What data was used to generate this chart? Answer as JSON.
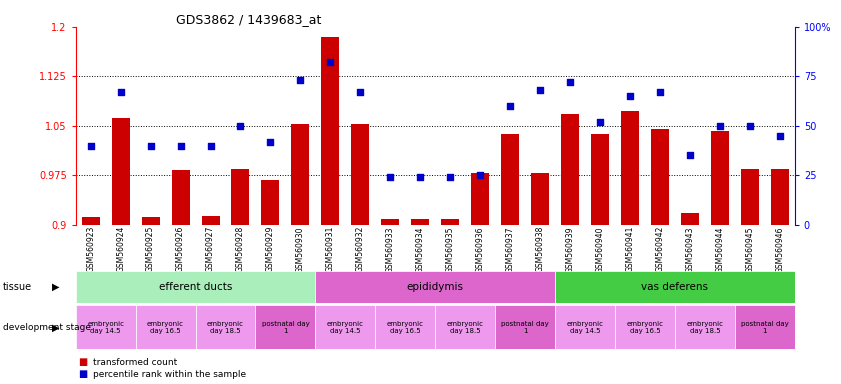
{
  "title": "GDS3862 / 1439683_at",
  "samples": [
    "GSM560923",
    "GSM560924",
    "GSM560925",
    "GSM560926",
    "GSM560927",
    "GSM560928",
    "GSM560929",
    "GSM560930",
    "GSM560931",
    "GSM560932",
    "GSM560933",
    "GSM560934",
    "GSM560935",
    "GSM560936",
    "GSM560937",
    "GSM560938",
    "GSM560939",
    "GSM560940",
    "GSM560941",
    "GSM560942",
    "GSM560943",
    "GSM560944",
    "GSM560945",
    "GSM560946"
  ],
  "transformed_count": [
    0.912,
    1.062,
    0.912,
    0.983,
    0.913,
    0.984,
    0.968,
    1.052,
    1.185,
    1.052,
    0.908,
    0.909,
    0.908,
    0.978,
    1.038,
    0.979,
    1.068,
    1.038,
    1.072,
    1.045,
    0.918,
    1.042,
    0.985,
    0.985
  ],
  "percentile_rank": [
    40,
    67,
    40,
    40,
    40,
    50,
    42,
    73,
    82,
    67,
    24,
    24,
    24,
    25,
    60,
    68,
    72,
    52,
    65,
    67,
    35,
    50,
    50,
    45
  ],
  "ylim_left": [
    0.9,
    1.2
  ],
  "ylim_right": [
    0,
    100
  ],
  "yticks_left": [
    0.9,
    0.975,
    1.05,
    1.125,
    1.2
  ],
  "yticks_right": [
    0,
    25,
    50,
    75,
    100
  ],
  "ytick_labels_left": [
    "0.9",
    "0.975",
    "1.05",
    "1.125",
    "1.2"
  ],
  "ytick_labels_right": [
    "0",
    "25",
    "50",
    "75",
    "100%"
  ],
  "bar_color": "#cc0000",
  "marker_color": "#0000cc",
  "tissue_groups": [
    {
      "label": "efferent ducts",
      "start": 0,
      "end": 7,
      "color": "#aaeebb"
    },
    {
      "label": "epididymis",
      "start": 8,
      "end": 15,
      "color": "#dd66cc"
    },
    {
      "label": "vas deferens",
      "start": 16,
      "end": 23,
      "color": "#44cc44"
    }
  ],
  "dev_stage_groups": [
    {
      "label": "embryonic\nday 14.5",
      "start": 0,
      "end": 1,
      "color": "#ee99ee"
    },
    {
      "label": "embryonic\nday 16.5",
      "start": 2,
      "end": 3,
      "color": "#ee99ee"
    },
    {
      "label": "embryonic\nday 18.5",
      "start": 4,
      "end": 5,
      "color": "#ee99ee"
    },
    {
      "label": "postnatal day\n1",
      "start": 6,
      "end": 7,
      "color": "#dd66cc"
    },
    {
      "label": "embryonic\nday 14.5",
      "start": 8,
      "end": 9,
      "color": "#ee99ee"
    },
    {
      "label": "embryonic\nday 16.5",
      "start": 10,
      "end": 11,
      "color": "#ee99ee"
    },
    {
      "label": "embryonic\nday 18.5",
      "start": 12,
      "end": 13,
      "color": "#ee99ee"
    },
    {
      "label": "postnatal day\n1",
      "start": 14,
      "end": 15,
      "color": "#dd66cc"
    },
    {
      "label": "embryonic\nday 14.5",
      "start": 16,
      "end": 17,
      "color": "#ee99ee"
    },
    {
      "label": "embryonic\nday 16.5",
      "start": 18,
      "end": 19,
      "color": "#ee99ee"
    },
    {
      "label": "embryonic\nday 18.5",
      "start": 20,
      "end": 21,
      "color": "#ee99ee"
    },
    {
      "label": "postnatal day\n1",
      "start": 22,
      "end": 23,
      "color": "#dd66cc"
    }
  ],
  "legend_bar_label": "transformed count",
  "legend_dot_label": "percentile rank within the sample",
  "fig_width": 8.41,
  "fig_height": 3.84,
  "fig_dpi": 100
}
